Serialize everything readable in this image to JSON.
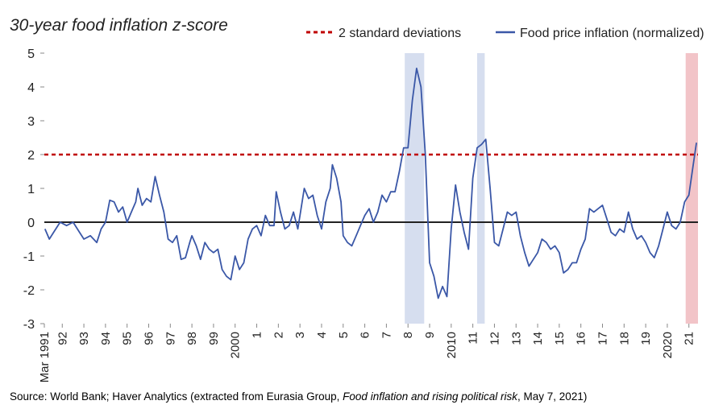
{
  "chart_data": {
    "type": "line",
    "title": "30-year food inflation z-score",
    "xlim": [
      1991.17,
      2021.42
    ],
    "ylim": [
      -3,
      5
    ],
    "yticks": [
      -3,
      -2,
      -1,
      0,
      1,
      2,
      3,
      4,
      5
    ],
    "xticks": [
      {
        "value": 1991.17,
        "label": "Mar 1991"
      },
      {
        "value": 1992,
        "label": "92"
      },
      {
        "value": 1993,
        "label": "93"
      },
      {
        "value": 1994,
        "label": "94"
      },
      {
        "value": 1995,
        "label": "95"
      },
      {
        "value": 1996,
        "label": "96"
      },
      {
        "value": 1997,
        "label": "97"
      },
      {
        "value": 1998,
        "label": "98"
      },
      {
        "value": 1999,
        "label": "99"
      },
      {
        "value": 2000,
        "label": "2000"
      },
      {
        "value": 2001,
        "label": "1"
      },
      {
        "value": 2002,
        "label": "2"
      },
      {
        "value": 2003,
        "label": "3"
      },
      {
        "value": 2004,
        "label": "4"
      },
      {
        "value": 2005,
        "label": "5"
      },
      {
        "value": 2006,
        "label": "6"
      },
      {
        "value": 2007,
        "label": "7"
      },
      {
        "value": 2008,
        "label": "8"
      },
      {
        "value": 2009,
        "label": "9"
      },
      {
        "value": 2010,
        "label": "2010"
      },
      {
        "value": 2011,
        "label": "11"
      },
      {
        "value": 2012,
        "label": "12"
      },
      {
        "value": 2013,
        "label": "13"
      },
      {
        "value": 2014,
        "label": "14"
      },
      {
        "value": 2015,
        "label": "15"
      },
      {
        "value": 2016,
        "label": "16"
      },
      {
        "value": 2017,
        "label": "17"
      },
      {
        "value": 2018,
        "label": "18"
      },
      {
        "value": 2019,
        "label": "19"
      },
      {
        "value": 2020,
        "label": "2020"
      },
      {
        "value": 2021,
        "label": "21"
      }
    ],
    "reference_lines": [
      {
        "name": "2 standard deviations",
        "value": 2,
        "color": "#c00000"
      }
    ],
    "shaded_periods": [
      {
        "x0": 2007.85,
        "x1": 2008.75,
        "color": "#d6deef"
      },
      {
        "x0": 2011.2,
        "x1": 2011.55,
        "color": "#d6deef"
      },
      {
        "x0": 2020.85,
        "x1": 2021.42,
        "color": "#f2c4c8"
      }
    ],
    "series": [
      {
        "name": "Food price inflation (normalized)",
        "color": "#3a57a7",
        "x": [
          1991.2,
          1991.4,
          1991.6,
          1991.9,
          1992.2,
          1992.5,
          1992.8,
          1993.0,
          1993.3,
          1993.6,
          1993.8,
          1994.0,
          1994.2,
          1994.4,
          1994.6,
          1994.8,
          1995.0,
          1995.2,
          1995.4,
          1995.5,
          1995.7,
          1995.9,
          1996.1,
          1996.3,
          1996.5,
          1996.7,
          1996.9,
          1997.1,
          1997.3,
          1997.5,
          1997.7,
          1997.9,
          1998.0,
          1998.2,
          1998.4,
          1998.6,
          1998.8,
          1999.0,
          1999.2,
          1999.4,
          1999.6,
          1999.8,
          2000.0,
          2000.2,
          2000.4,
          2000.6,
          2000.8,
          2001.0,
          2001.2,
          2001.4,
          2001.6,
          2001.8,
          2001.9,
          2002.1,
          2002.3,
          2002.5,
          2002.7,
          2002.9,
          2003.0,
          2003.2,
          2003.4,
          2003.6,
          2003.8,
          2004.0,
          2004.2,
          2004.4,
          2004.5,
          2004.7,
          2004.9,
          2005.0,
          2005.2,
          2005.4,
          2005.6,
          2005.8,
          2006.0,
          2006.2,
          2006.4,
          2006.6,
          2006.8,
          2007.0,
          2007.2,
          2007.4,
          2007.6,
          2007.8,
          2008.0,
          2008.2,
          2008.4,
          2008.6,
          2008.8,
          2009.0,
          2009.2,
          2009.4,
          2009.6,
          2009.8,
          2010.0,
          2010.2,
          2010.4,
          2010.6,
          2010.8,
          2011.0,
          2011.2,
          2011.4,
          2011.6,
          2011.8,
          2012.0,
          2012.2,
          2012.4,
          2012.6,
          2012.8,
          2013.0,
          2013.2,
          2013.4,
          2013.6,
          2013.8,
          2014.0,
          2014.2,
          2014.4,
          2014.6,
          2014.8,
          2015.0,
          2015.2,
          2015.4,
          2015.6,
          2015.8,
          2016.0,
          2016.2,
          2016.4,
          2016.6,
          2016.8,
          2017.0,
          2017.2,
          2017.4,
          2017.6,
          2017.8,
          2018.0,
          2018.2,
          2018.4,
          2018.6,
          2018.8,
          2019.0,
          2019.2,
          2019.4,
          2019.6,
          2019.8,
          2020.0,
          2020.2,
          2020.4,
          2020.6,
          2020.8,
          2021.0,
          2021.2,
          2021.35
        ],
        "values": [
          -0.2,
          -0.5,
          -0.3,
          0.0,
          -0.1,
          0.0,
          -0.3,
          -0.5,
          -0.4,
          -0.6,
          -0.2,
          0.0,
          0.65,
          0.6,
          0.3,
          0.45,
          0.0,
          0.3,
          0.6,
          1.0,
          0.5,
          0.7,
          0.6,
          1.35,
          0.8,
          0.3,
          -0.5,
          -0.6,
          -0.4,
          -1.1,
          -1.05,
          -0.6,
          -0.4,
          -0.7,
          -1.1,
          -0.6,
          -0.8,
          -0.9,
          -0.8,
          -1.4,
          -1.6,
          -1.7,
          -1.0,
          -1.4,
          -1.2,
          -0.5,
          -0.2,
          -0.1,
          -0.4,
          0.2,
          -0.1,
          -0.1,
          0.9,
          0.3,
          -0.2,
          -0.1,
          0.3,
          -0.2,
          0.2,
          1.0,
          0.7,
          0.8,
          0.2,
          -0.2,
          0.6,
          1.0,
          1.7,
          1.3,
          0.6,
          -0.4,
          -0.6,
          -0.7,
          -0.4,
          -0.1,
          0.2,
          0.4,
          0.0,
          0.3,
          0.8,
          0.6,
          0.9,
          0.9,
          1.5,
          2.2,
          2.2,
          3.6,
          4.55,
          4.0,
          2.0,
          -1.2,
          -1.6,
          -2.25,
          -1.9,
          -2.2,
          -0.2,
          1.1,
          0.3,
          -0.3,
          -0.8,
          1.3,
          2.2,
          2.3,
          2.45,
          1.0,
          -0.6,
          -0.7,
          -0.2,
          0.3,
          0.2,
          0.3,
          -0.4,
          -0.9,
          -1.3,
          -1.1,
          -0.9,
          -0.5,
          -0.6,
          -0.8,
          -0.7,
          -0.9,
          -1.5,
          -1.4,
          -1.2,
          -1.2,
          -0.8,
          -0.5,
          0.4,
          0.3,
          0.4,
          0.5,
          0.1,
          -0.3,
          -0.4,
          -0.2,
          -0.3,
          0.3,
          -0.2,
          -0.5,
          -0.4,
          -0.6,
          -0.9,
          -1.05,
          -0.7,
          -0.2,
          0.3,
          -0.1,
          -0.2,
          0.0,
          0.6,
          0.8,
          1.7,
          2.35
        ]
      }
    ]
  },
  "source": {
    "before": "Source: World Bank; Haver Analytics (extracted from Eurasia Group, ",
    "italic": "Food inflation and rising political risk",
    "after": ", May 7, 2021)"
  }
}
